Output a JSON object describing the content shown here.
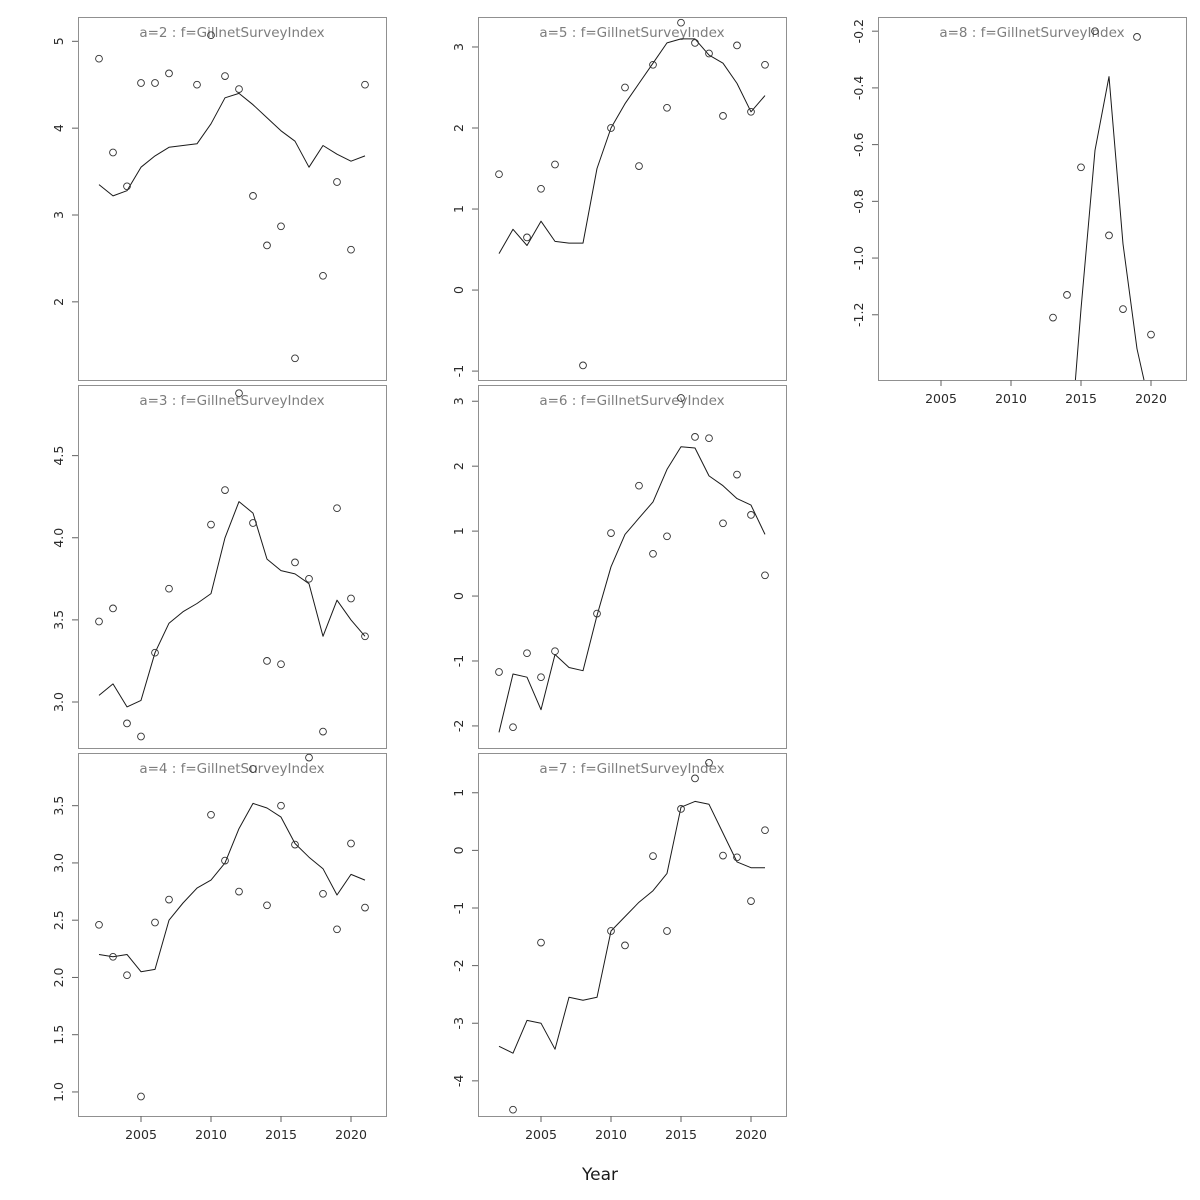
{
  "chart_data": {
    "type": "line",
    "marker": "open-circle",
    "xlabel": "Year",
    "xlim": [
      2000.5,
      2022.5
    ],
    "x_ticks": [
      2005,
      2010,
      2015,
      2020
    ],
    "grid": false,
    "legend": "none",
    "colors": {
      "box": "#909090",
      "tick": "#606060",
      "label": "#2a2a2a",
      "title": "#7d7d7d",
      "line": "#1a1a1a",
      "point": "#333333",
      "background": "#ffffff"
    },
    "panels": [
      {
        "id": "a2",
        "title": "a=2 : f=GillnetSurveyIndex",
        "ylim": [
          1.1,
          5.28
        ],
        "y_ticks": [
          "2",
          "3",
          "4",
          "5"
        ],
        "x_axis": false,
        "points": [
          [
            2002,
            4.8
          ],
          [
            2003,
            3.72
          ],
          [
            2004,
            3.33
          ],
          [
            2005,
            4.52
          ],
          [
            2006,
            4.52
          ],
          [
            2007,
            4.63
          ],
          [
            2009,
            4.5
          ],
          [
            2010,
            5.07
          ],
          [
            2011,
            4.6
          ],
          [
            2012,
            4.45
          ],
          [
            2013,
            3.22
          ],
          [
            2014,
            2.65
          ],
          [
            2015,
            2.87
          ],
          [
            2016,
            1.35
          ],
          [
            2018,
            2.3
          ],
          [
            2019,
            3.38
          ],
          [
            2020,
            2.6
          ],
          [
            2021,
            4.5
          ]
        ],
        "line": [
          [
            2002,
            3.35
          ],
          [
            2003,
            3.22
          ],
          [
            2004,
            3.28
          ],
          [
            2005,
            3.55
          ],
          [
            2006,
            3.68
          ],
          [
            2007,
            3.78
          ],
          [
            2008,
            3.8
          ],
          [
            2009,
            3.82
          ],
          [
            2010,
            4.05
          ],
          [
            2011,
            4.35
          ],
          [
            2012,
            4.4
          ],
          [
            2013,
            4.27
          ],
          [
            2014,
            4.12
          ],
          [
            2015,
            3.97
          ],
          [
            2016,
            3.85
          ],
          [
            2017,
            3.55
          ],
          [
            2018,
            3.8
          ],
          [
            2019,
            3.7
          ],
          [
            2020,
            3.62
          ],
          [
            2021,
            3.68
          ]
        ]
      },
      {
        "id": "a3",
        "title": "a=3 : f=GillnetSurveyIndex",
        "ylim": [
          2.72,
          4.93
        ],
        "y_ticks": [
          "3.0",
          "3.5",
          "4.0",
          "4.5"
        ],
        "x_axis": false,
        "points": [
          [
            2002,
            3.49
          ],
          [
            2003,
            3.57
          ],
          [
            2004,
            2.87
          ],
          [
            2005,
            2.79
          ],
          [
            2006,
            3.3
          ],
          [
            2007,
            3.69
          ],
          [
            2010,
            4.08
          ],
          [
            2011,
            4.29
          ],
          [
            2012,
            4.88
          ],
          [
            2013,
            4.09
          ],
          [
            2014,
            3.25
          ],
          [
            2015,
            3.23
          ],
          [
            2016,
            3.85
          ],
          [
            2017,
            3.75
          ],
          [
            2018,
            2.82
          ],
          [
            2019,
            4.18
          ],
          [
            2020,
            3.63
          ],
          [
            2021,
            3.4
          ]
        ],
        "line": [
          [
            2002,
            3.04
          ],
          [
            2003,
            3.11
          ],
          [
            2004,
            2.97
          ],
          [
            2005,
            3.01
          ],
          [
            2006,
            3.3
          ],
          [
            2007,
            3.48
          ],
          [
            2008,
            3.55
          ],
          [
            2009,
            3.6
          ],
          [
            2010,
            3.66
          ],
          [
            2011,
            4.0
          ],
          [
            2012,
            4.22
          ],
          [
            2013,
            4.15
          ],
          [
            2014,
            3.87
          ],
          [
            2015,
            3.8
          ],
          [
            2016,
            3.78
          ],
          [
            2017,
            3.72
          ],
          [
            2018,
            3.4
          ],
          [
            2019,
            3.62
          ],
          [
            2020,
            3.5
          ],
          [
            2021,
            3.4
          ]
        ]
      },
      {
        "id": "a4",
        "title": "a=4 : f=GillnetSurveyIndex",
        "ylim": [
          0.79,
          3.96
        ],
        "y_ticks": [
          "1.0",
          "1.5",
          "2.0",
          "2.5",
          "3.0",
          "3.5"
        ],
        "x_axis": true,
        "points": [
          [
            2002,
            2.46
          ],
          [
            2003,
            2.18
          ],
          [
            2004,
            2.02
          ],
          [
            2005,
            0.96
          ],
          [
            2006,
            2.48
          ],
          [
            2007,
            2.68
          ],
          [
            2010,
            3.42
          ],
          [
            2011,
            3.02
          ],
          [
            2012,
            2.75
          ],
          [
            2013,
            3.82
          ],
          [
            2014,
            2.63
          ],
          [
            2015,
            3.5
          ],
          [
            2016,
            3.16
          ],
          [
            2017,
            3.92
          ],
          [
            2018,
            2.73
          ],
          [
            2019,
            2.42
          ],
          [
            2020,
            3.17
          ],
          [
            2021,
            2.61
          ]
        ],
        "line": [
          [
            2002,
            2.2
          ],
          [
            2003,
            2.18
          ],
          [
            2004,
            2.2
          ],
          [
            2005,
            2.05
          ],
          [
            2006,
            2.07
          ],
          [
            2007,
            2.5
          ],
          [
            2008,
            2.65
          ],
          [
            2009,
            2.78
          ],
          [
            2010,
            2.85
          ],
          [
            2011,
            3.0
          ],
          [
            2012,
            3.3
          ],
          [
            2013,
            3.52
          ],
          [
            2014,
            3.48
          ],
          [
            2015,
            3.4
          ],
          [
            2016,
            3.17
          ],
          [
            2017,
            3.05
          ],
          [
            2018,
            2.95
          ],
          [
            2019,
            2.72
          ],
          [
            2020,
            2.9
          ],
          [
            2021,
            2.85
          ]
        ]
      },
      {
        "id": "a5",
        "title": "a=5 : f=GillnetSurveyIndex",
        "ylim": [
          -1.11,
          3.37
        ],
        "y_ticks": [
          "-1",
          "0",
          "1",
          "2",
          "3"
        ],
        "x_axis": false,
        "points": [
          [
            2002,
            1.43
          ],
          [
            2004,
            0.65
          ],
          [
            2005,
            1.25
          ],
          [
            2006,
            1.55
          ],
          [
            2008,
            -0.93
          ],
          [
            2010,
            2.0
          ],
          [
            2011,
            2.5
          ],
          [
            2012,
            1.53
          ],
          [
            2013,
            2.78
          ],
          [
            2014,
            2.25
          ],
          [
            2015,
            3.3
          ],
          [
            2016,
            3.05
          ],
          [
            2017,
            2.92
          ],
          [
            2018,
            2.15
          ],
          [
            2019,
            3.02
          ],
          [
            2020,
            2.2
          ],
          [
            2021,
            2.78
          ]
        ],
        "line": [
          [
            2002,
            0.45
          ],
          [
            2003,
            0.75
          ],
          [
            2004,
            0.55
          ],
          [
            2005,
            0.85
          ],
          [
            2006,
            0.6
          ],
          [
            2007,
            0.58
          ],
          [
            2008,
            0.58
          ],
          [
            2009,
            1.5
          ],
          [
            2010,
            2.0
          ],
          [
            2011,
            2.3
          ],
          [
            2012,
            2.55
          ],
          [
            2013,
            2.8
          ],
          [
            2014,
            3.05
          ],
          [
            2015,
            3.1
          ],
          [
            2016,
            3.1
          ],
          [
            2017,
            2.9
          ],
          [
            2018,
            2.8
          ],
          [
            2019,
            2.55
          ],
          [
            2020,
            2.2
          ],
          [
            2021,
            2.4
          ]
        ]
      },
      {
        "id": "a6",
        "title": "a=6 : f=GillnetSurveyIndex",
        "ylim": [
          -2.34,
          3.25
        ],
        "y_ticks": [
          "-2",
          "-1",
          "0",
          "1",
          "2",
          "3"
        ],
        "x_axis": false,
        "points": [
          [
            2002,
            -1.17
          ],
          [
            2003,
            -2.02
          ],
          [
            2004,
            -0.88
          ],
          [
            2005,
            -1.25
          ],
          [
            2006,
            -0.85
          ],
          [
            2009,
            -0.27
          ],
          [
            2010,
            0.97
          ],
          [
            2012,
            1.7
          ],
          [
            2013,
            0.65
          ],
          [
            2014,
            0.92
          ],
          [
            2015,
            3.05
          ],
          [
            2016,
            2.45
          ],
          [
            2017,
            2.43
          ],
          [
            2018,
            1.12
          ],
          [
            2019,
            1.87
          ],
          [
            2020,
            1.25
          ],
          [
            2021,
            0.32
          ]
        ],
        "line": [
          [
            2002,
            -2.1
          ],
          [
            2003,
            -1.2
          ],
          [
            2004,
            -1.25
          ],
          [
            2005,
            -1.75
          ],
          [
            2006,
            -0.9
          ],
          [
            2007,
            -1.1
          ],
          [
            2008,
            -1.15
          ],
          [
            2009,
            -0.3
          ],
          [
            2010,
            0.45
          ],
          [
            2011,
            0.95
          ],
          [
            2012,
            1.2
          ],
          [
            2013,
            1.45
          ],
          [
            2014,
            1.95
          ],
          [
            2015,
            2.3
          ],
          [
            2016,
            2.28
          ],
          [
            2017,
            1.85
          ],
          [
            2018,
            1.7
          ],
          [
            2019,
            1.5
          ],
          [
            2020,
            1.4
          ],
          [
            2021,
            0.95
          ]
        ]
      },
      {
        "id": "a7",
        "title": "a=7 : f=GillnetSurveyIndex",
        "ylim": [
          -4.61,
          1.69
        ],
        "y_ticks": [
          "-4",
          "-3",
          "-2",
          "-1",
          "0",
          "1"
        ],
        "x_axis": true,
        "points": [
          [
            2003,
            -4.5
          ],
          [
            2005,
            -1.6
          ],
          [
            2010,
            -1.4
          ],
          [
            2011,
            -1.65
          ],
          [
            2013,
            -0.1
          ],
          [
            2014,
            -1.4
          ],
          [
            2015,
            0.72
          ],
          [
            2016,
            1.25
          ],
          [
            2017,
            1.52
          ],
          [
            2018,
            -0.09
          ],
          [
            2019,
            -0.12
          ],
          [
            2020,
            -0.88
          ],
          [
            2021,
            0.35
          ]
        ],
        "line": [
          [
            2002,
            -3.4
          ],
          [
            2003,
            -3.52
          ],
          [
            2004,
            -2.95
          ],
          [
            2005,
            -3.0
          ],
          [
            2006,
            -3.45
          ],
          [
            2007,
            -2.55
          ],
          [
            2008,
            -2.6
          ],
          [
            2009,
            -2.55
          ],
          [
            2010,
            -1.4
          ],
          [
            2011,
            -1.15
          ],
          [
            2012,
            -0.9
          ],
          [
            2013,
            -0.7
          ],
          [
            2014,
            -0.4
          ],
          [
            2015,
            0.75
          ],
          [
            2016,
            0.85
          ],
          [
            2017,
            0.8
          ],
          [
            2018,
            0.3
          ],
          [
            2019,
            -0.2
          ],
          [
            2020,
            -0.3
          ],
          [
            2021,
            -0.3
          ]
        ]
      },
      {
        "id": "a8",
        "title": "a=8 : f=GillnetSurveyIndex",
        "ylim": [
          -1.43,
          -0.15
        ],
        "y_ticks": [
          "-1.2",
          "-1.0",
          "-0.8",
          "-0.6",
          "-0.4",
          "-0.2"
        ],
        "x_axis": true,
        "points": [
          [
            2013,
            -1.21
          ],
          [
            2014,
            -1.13
          ],
          [
            2015,
            -0.68
          ],
          [
            2016,
            -0.2
          ],
          [
            2017,
            -0.92
          ],
          [
            2018,
            -1.18
          ],
          [
            2019,
            -0.22
          ],
          [
            2020,
            -1.27
          ]
        ],
        "line": [
          [
            2014.6,
            -1.43
          ],
          [
            2015,
            -1.18
          ],
          [
            2016,
            -0.62
          ],
          [
            2017,
            -0.36
          ],
          [
            2018,
            -0.95
          ],
          [
            2019,
            -1.32
          ],
          [
            2019.5,
            -1.43
          ]
        ]
      }
    ]
  }
}
